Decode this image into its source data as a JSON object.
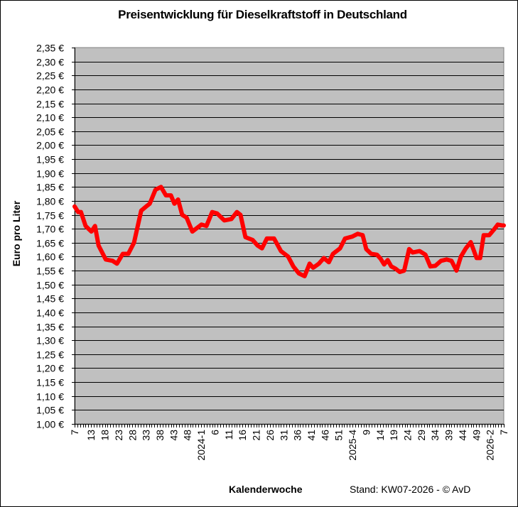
{
  "chart_data": {
    "type": "line",
    "title": "Preisentwicklung für Dieselkraftstoff in Deutschland",
    "xlabel": "Kalenderwoche",
    "ylabel": "Euro pro Liter",
    "footer": "Stand: KW07-2026 - © AvD",
    "ylim": [
      1.0,
      2.35
    ],
    "y_ticks": [
      "1,00 €",
      "1,05 €",
      "1,10 €",
      "1,15 €",
      "1,20 €",
      "1,25 €",
      "1,30 €",
      "1,35 €",
      "1,40 €",
      "1,45 €",
      "1,50 €",
      "1,55 €",
      "1,60 €",
      "1,65 €",
      "1,70 €",
      "1,75 €",
      "1,80 €",
      "1,85 €",
      "1,90 €",
      "1,95 €",
      "2,00 €",
      "2,05 €",
      "2,10 €",
      "2,15 €",
      "2,20 €",
      "2,25 €",
      "2,30 €",
      "2,35 €"
    ],
    "x_tick_labels": [
      "7",
      "13",
      "18",
      "23",
      "28",
      "33",
      "38",
      "43",
      "48",
      "2024-1",
      "6",
      "11",
      "16",
      "21",
      "26",
      "31",
      "36",
      "41",
      "46",
      "51",
      "2025-4",
      "9",
      "14",
      "19",
      "24",
      "29",
      "34",
      "39",
      "44",
      "49",
      "2026-2",
      "7"
    ],
    "x_range_weeks": [
      "2023-KW07",
      "2026-KW07"
    ],
    "grid": true,
    "legend": "none",
    "series": [
      {
        "name": "Diesel",
        "color": "#ff0000",
        "points": [
          [
            0,
            1.78
          ],
          [
            1.3,
            1.76
          ],
          [
            2.3,
            1.76
          ],
          [
            4,
            1.71
          ],
          [
            6.1,
            1.69
          ],
          [
            7.4,
            1.71
          ],
          [
            8.7,
            1.64
          ],
          [
            11.3,
            1.59
          ],
          [
            13.8,
            1.585
          ],
          [
            15.4,
            1.575
          ],
          [
            17.5,
            1.61
          ],
          [
            19.5,
            1.61
          ],
          [
            21.6,
            1.65
          ],
          [
            24.2,
            1.765
          ],
          [
            26,
            1.78
          ],
          [
            27.3,
            1.79
          ],
          [
            29.4,
            1.84
          ],
          [
            31.4,
            1.85
          ],
          [
            33.2,
            1.82
          ],
          [
            35,
            1.82
          ],
          [
            36.3,
            1.79
          ],
          [
            37.6,
            1.805
          ],
          [
            39.1,
            1.75
          ],
          [
            40.7,
            1.74
          ],
          [
            42.8,
            1.69
          ],
          [
            44.1,
            1.7
          ],
          [
            46.1,
            1.715
          ],
          [
            47.9,
            1.71
          ],
          [
            50,
            1.76
          ],
          [
            51.8,
            1.755
          ],
          [
            54.4,
            1.73
          ],
          [
            57,
            1.735
          ],
          [
            59,
            1.76
          ],
          [
            60.3,
            1.75
          ],
          [
            62.1,
            1.67
          ],
          [
            64.7,
            1.66
          ],
          [
            66.5,
            1.64
          ],
          [
            68.1,
            1.63
          ],
          [
            69.9,
            1.665
          ],
          [
            72.5,
            1.665
          ],
          [
            75,
            1.62
          ],
          [
            77.6,
            1.6
          ],
          [
            79.5,
            1.565
          ],
          [
            81.5,
            1.54
          ],
          [
            83.6,
            1.53
          ],
          [
            85.4,
            1.575
          ],
          [
            86.7,
            1.56
          ],
          [
            88.8,
            1.575
          ],
          [
            90.6,
            1.595
          ],
          [
            92.4,
            1.58
          ],
          [
            93.9,
            1.61
          ],
          [
            96.5,
            1.63
          ],
          [
            98.3,
            1.665
          ],
          [
            100.9,
            1.672
          ],
          [
            102.9,
            1.682
          ],
          [
            104.7,
            1.677
          ],
          [
            106,
            1.627
          ],
          [
            107.8,
            1.61
          ],
          [
            109.9,
            1.607
          ],
          [
            111.2,
            1.593
          ],
          [
            112.5,
            1.572
          ],
          [
            113.8,
            1.588
          ],
          [
            115.1,
            1.565
          ],
          [
            116.6,
            1.557
          ],
          [
            118.2,
            1.545
          ],
          [
            119.8,
            1.55
          ],
          [
            121.6,
            1.627
          ],
          [
            122.9,
            1.615
          ],
          [
            125.4,
            1.62
          ],
          [
            127.5,
            1.607
          ],
          [
            129.3,
            1.565
          ],
          [
            131.1,
            1.567
          ],
          [
            133.2,
            1.585
          ],
          [
            135.2,
            1.59
          ],
          [
            137,
            1.585
          ],
          [
            138.8,
            1.55
          ],
          [
            140.4,
            1.6
          ],
          [
            142.2,
            1.63
          ],
          [
            144,
            1.652
          ],
          [
            146.1,
            1.595
          ],
          [
            147.4,
            1.595
          ],
          [
            148.7,
            1.677
          ],
          [
            150.7,
            1.677
          ],
          [
            152.5,
            1.698
          ],
          [
            153.8,
            1.715
          ],
          [
            155.4,
            1.712
          ],
          [
            156,
            1.712
          ]
        ]
      }
    ]
  }
}
